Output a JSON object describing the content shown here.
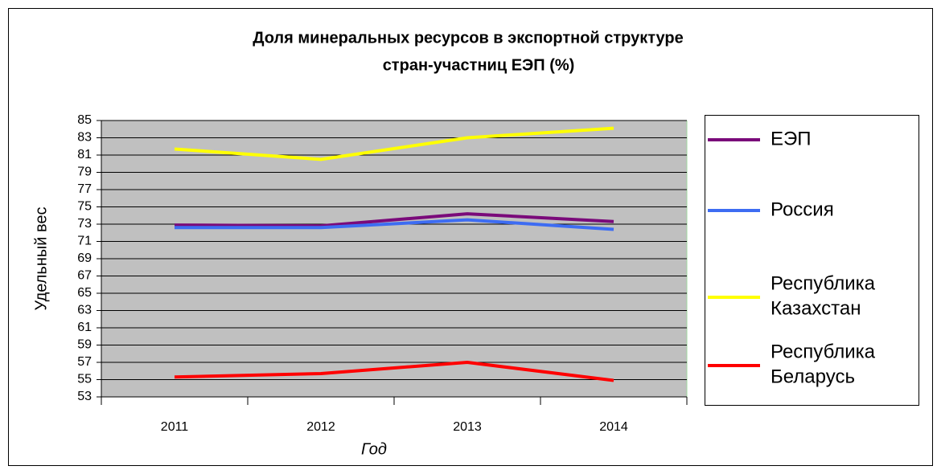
{
  "chart_data": {
    "type": "line",
    "title": [
      "Доля минеральных ресурсов в экспортной структуре",
      "стран-участниц ЕЭП (%)"
    ],
    "x_label": "Год",
    "y_label": "Удельный вес",
    "categories": [
      "2011",
      "2012",
      "2013",
      "2014"
    ],
    "series": [
      {
        "name": "ЕЭП",
        "color": "#7a0a7a",
        "values": [
          72.9,
          72.8,
          74.2,
          73.3
        ]
      },
      {
        "name": "Россия",
        "color": "#3d6cf2",
        "values": [
          72.6,
          72.6,
          73.5,
          72.4
        ]
      },
      {
        "name": "Республика Казахстан",
        "color": "#ffff00",
        "values": [
          81.7,
          80.5,
          83.0,
          84.1
        ]
      },
      {
        "name": "Республика Беларусь",
        "color": "#ff0000",
        "values": [
          55.3,
          55.7,
          57.0,
          54.9
        ]
      }
    ],
    "ylim": [
      53,
      85
    ],
    "yticks": [
      53,
      55,
      57,
      59,
      61,
      63,
      65,
      67,
      69,
      71,
      73,
      75,
      77,
      79,
      81,
      83,
      85
    ],
    "grid": true,
    "legend": "right"
  }
}
